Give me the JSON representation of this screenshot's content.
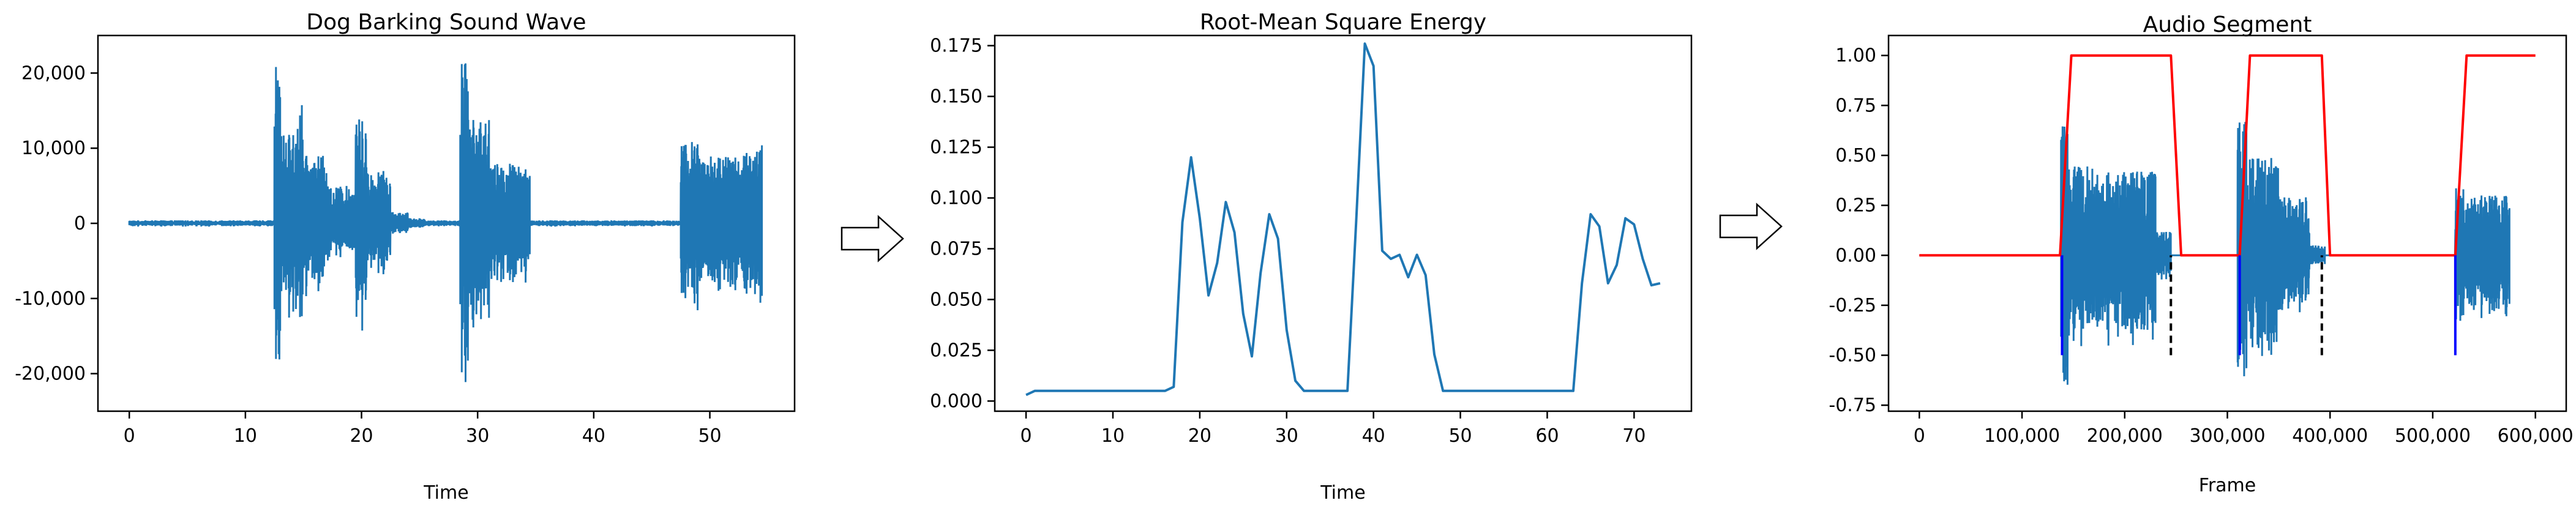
{
  "chart_data": [
    {
      "type": "line",
      "title": "Dog Barking Sound Wave",
      "xlabel": "Time",
      "ylabel": "",
      "xlim": [
        -2.7,
        57.3
      ],
      "ylim": [
        -25000,
        25000
      ],
      "xticks": [
        0,
        10,
        20,
        30,
        40,
        50
      ],
      "xtick_labels": [
        "0",
        "10",
        "20",
        "30",
        "40",
        "50"
      ],
      "yticks": [
        -20000,
        -10000,
        0,
        10000,
        20000
      ],
      "ytick_labels": [
        "-20,000",
        "-10,000",
        "0",
        "10,000",
        "20,000"
      ],
      "grid": false,
      "series": [
        {
          "color": "#1f77b4",
          "envelope": [
            {
              "x": [
                0,
                12.5
              ],
              "amp": 400
            },
            {
              "x": [
                12.5,
                13.0
              ],
              "amp": 22000
            },
            {
              "x": [
                13.0,
                14.5
              ],
              "amp": 12000
            },
            {
              "x": [
                14.5,
                15.0
              ],
              "amp": 16000
            },
            {
              "x": [
                15.0,
                17.0
              ],
              "amp": 9000
            },
            {
              "x": [
                17.0,
                19.5
              ],
              "amp": 5000
            },
            {
              "x": [
                19.5,
                20.5
              ],
              "amp": 14000
            },
            {
              "x": [
                20.5,
                22.5
              ],
              "amp": 7000
            },
            {
              "x": [
                22.5,
                24.0
              ],
              "amp": 1500
            },
            {
              "x": [
                24.0,
                25.5
              ],
              "amp": 700
            },
            {
              "x": [
                25.5,
                28.5
              ],
              "amp": 400
            },
            {
              "x": [
                28.5,
                29.2
              ],
              "amp": 22000
            },
            {
              "x": [
                29.2,
                31.0
              ],
              "amp": 14000
            },
            {
              "x": [
                31.0,
                34.5
              ],
              "amp": 8000
            },
            {
              "x": [
                34.5,
                47.5
              ],
              "amp": 400
            },
            {
              "x": [
                47.5,
                49.0
              ],
              "amp": 11000
            },
            {
              "x": [
                49.0,
                53.0
              ],
              "amp": 9000
            },
            {
              "x": [
                53.0,
                54.5
              ],
              "amp": 11000
            }
          ]
        }
      ]
    },
    {
      "type": "line",
      "title": "Root-Mean Square Energy",
      "xlabel": "Time",
      "ylabel": "",
      "xlim": [
        -3.6,
        76.6
      ],
      "ylim": [
        -0.005,
        0.18
      ],
      "xticks": [
        0,
        10,
        20,
        30,
        40,
        50,
        60,
        70
      ],
      "xtick_labels": [
        "0",
        "10",
        "20",
        "30",
        "40",
        "50",
        "60",
        "70"
      ],
      "yticks": [
        0,
        0.025,
        0.05,
        0.075,
        0.1,
        0.125,
        0.15,
        0.175
      ],
      "ytick_labels": [
        "0.000",
        "0.025",
        "0.050",
        "0.075",
        "0.100",
        "0.125",
        "0.150",
        "0.175"
      ],
      "grid": false,
      "series": [
        {
          "color": "#1f77b4",
          "x": [
            0,
            1,
            2,
            15,
            16,
            17,
            18,
            19,
            20,
            21,
            22,
            23,
            24,
            25,
            26,
            27,
            28,
            29,
            30,
            31,
            32,
            36,
            37,
            38,
            39,
            40,
            41,
            42,
            43,
            44,
            45,
            46,
            47,
            48,
            62,
            63,
            64,
            65,
            66,
            67,
            68,
            69,
            70,
            71,
            72,
            73
          ],
          "y": [
            0.003,
            0.005,
            0.005,
            0.005,
            0.005,
            0.007,
            0.088,
            0.12,
            0.09,
            0.052,
            0.068,
            0.098,
            0.083,
            0.043,
            0.022,
            0.063,
            0.092,
            0.08,
            0.035,
            0.01,
            0.005,
            0.005,
            0.005,
            0.088,
            0.176,
            0.165,
            0.074,
            0.07,
            0.072,
            0.061,
            0.072,
            0.062,
            0.023,
            0.005,
            0.005,
            0.005,
            0.058,
            0.092,
            0.086,
            0.058,
            0.067,
            0.09,
            0.087,
            0.07,
            0.057,
            0.058
          ]
        }
      ]
    },
    {
      "type": "line",
      "title": "Audio Segment",
      "xlabel": "Frame",
      "ylabel": "",
      "xlim": [
        -30000,
        630000
      ],
      "ylim": [
        -0.78,
        1.1
      ],
      "xticks": [
        0,
        100000,
        200000,
        300000,
        400000,
        500000,
        600000
      ],
      "xtick_labels": [
        "0",
        "100,000",
        "200,000",
        "300,000",
        "400,000",
        "500,000",
        "600,000"
      ],
      "yticks": [
        -0.75,
        -0.5,
        -0.25,
        0,
        0.25,
        0.5,
        0.75,
        1.0
      ],
      "ytick_labels": [
        "-0.75",
        "-0.50",
        "-0.25",
        "0.00",
        "0.25",
        "0.50",
        "0.75",
        "1.00"
      ],
      "grid": false,
      "series": [
        {
          "color": "#1f77b4",
          "envelope": [
            {
              "x": [
                0,
                138000
              ],
              "amp": 0
            },
            {
              "x": [
                138000,
                145000
              ],
              "amp": 0.7
            },
            {
              "x": [
                145000,
                170000
              ],
              "amp": 0.45
            },
            {
              "x": [
                170000,
                230000
              ],
              "amp": 0.42
            },
            {
              "x": [
                230000,
                245000
              ],
              "amp": 0.12
            },
            {
              "x": [
                245000,
                310000
              ],
              "amp": 0
            },
            {
              "x": [
                310000,
                320000
              ],
              "amp": 0.67
            },
            {
              "x": [
                320000,
                350000
              ],
              "amp": 0.5
            },
            {
              "x": [
                350000,
                380000
              ],
              "amp": 0.3
            },
            {
              "x": [
                380000,
                395000
              ],
              "amp": 0.05
            },
            {
              "x": [
                395000,
                522000
              ],
              "amp": 0
            },
            {
              "x": [
                522000,
                530000
              ],
              "amp": 0.35
            },
            {
              "x": [
                530000,
                575000
              ],
              "amp": 0.3
            }
          ]
        },
        {
          "color": "#ff0000",
          "x": [
            0,
            137000,
            148000,
            245000,
            255000,
            312000,
            322000,
            392000,
            400000,
            522000,
            533000,
            600000
          ],
          "y": [
            0,
            0,
            1,
            1,
            0,
            0,
            1,
            1,
            0,
            0,
            1,
            1
          ]
        },
        {
          "color": "#0000ff",
          "vlines": [
            {
              "x": 139000,
              "ymin": -0.5,
              "ymax": 0
            },
            {
              "x": 312000,
              "ymin": -0.5,
              "ymax": 0
            },
            {
              "x": 522000,
              "ymin": -0.5,
              "ymax": 0
            }
          ]
        },
        {
          "color": "#000000",
          "dashed_vlines": [
            {
              "x": 245000,
              "ymin": -0.5,
              "ymax": 0
            },
            {
              "x": 392000,
              "ymin": -0.5,
              "ymax": 0
            }
          ]
        }
      ]
    }
  ],
  "arrows": [
    {
      "direction": "right"
    },
    {
      "direction": "right"
    }
  ]
}
